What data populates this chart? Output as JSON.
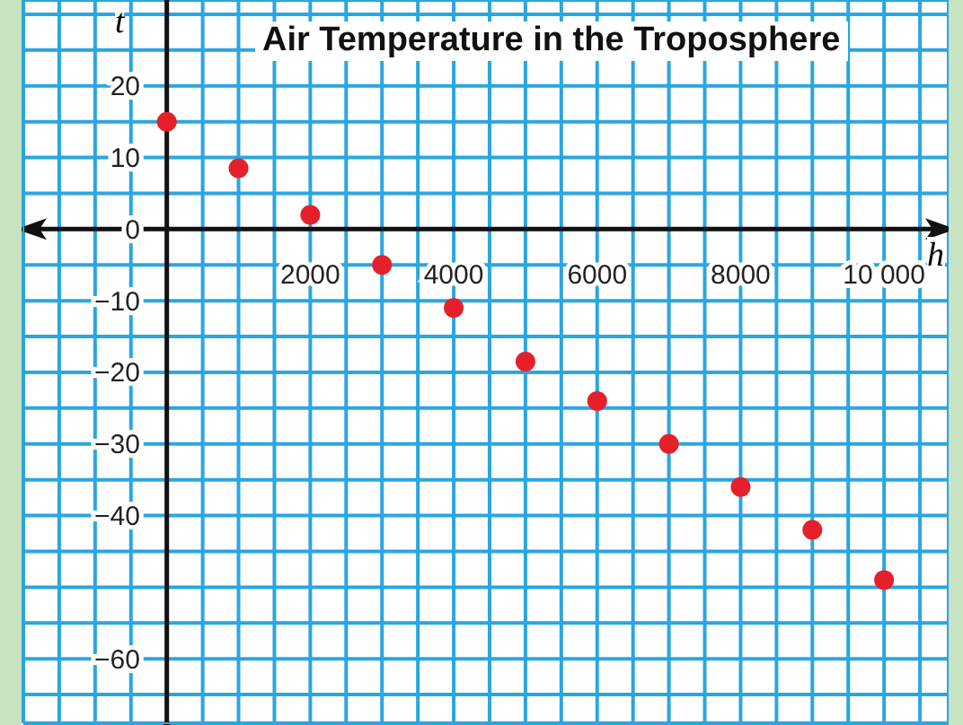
{
  "chart_data": {
    "type": "scatter",
    "title": "Air Temperature in the Troposphere",
    "xlabel": "h",
    "ylabel": "t",
    "x": [
      0,
      1000,
      2000,
      3000,
      4000,
      5000,
      6000,
      7000,
      8000,
      9000,
      10000
    ],
    "series": [
      {
        "color": "#e5202a",
        "values": [
          15,
          8.5,
          2,
          -5,
          -11,
          -18.5,
          -24,
          -30,
          -36,
          -42,
          -49
        ]
      }
    ],
    "marker": "circle",
    "grid": true,
    "xlim": [
      -2000,
      10900
    ],
    "ylim": [
      -69,
      32
    ],
    "xticks": [
      {
        "value": -2000,
        "label": null
      },
      {
        "value": -1500,
        "label": null
      },
      {
        "value": -1000,
        "label": null
      },
      {
        "value": -500,
        "label": null
      },
      {
        "value": 0,
        "label": null
      },
      {
        "value": 500,
        "label": null
      },
      {
        "value": 1000,
        "label": null
      },
      {
        "value": 1500,
        "label": null
      },
      2000,
      {
        "value": 2500,
        "label": null
      },
      {
        "value": 3000,
        "label": null
      },
      {
        "value": 3500,
        "label": null
      },
      4000,
      {
        "value": 4500,
        "label": null
      },
      {
        "value": 5000,
        "label": null
      },
      {
        "value": 5500,
        "label": null
      },
      6000,
      {
        "value": 6500,
        "label": null
      },
      {
        "value": 7000,
        "label": null
      },
      {
        "value": 7500,
        "label": null
      },
      8000,
      {
        "value": 8500,
        "label": null
      },
      {
        "value": 9000,
        "label": null
      },
      {
        "value": 9500,
        "label": null
      },
      {
        "value": 10000,
        "label": "10 000"
      },
      {
        "value": 10500,
        "label": null
      }
    ],
    "yticks": [
      {
        "value": -65,
        "label": null
      },
      {
        "value": -60,
        "label": "−60"
      },
      {
        "value": -55,
        "label": null
      },
      {
        "value": -50,
        "label": null
      },
      {
        "value": -45,
        "label": null
      },
      {
        "value": -40,
        "label": "−40"
      },
      {
        "value": -35,
        "label": null
      },
      {
        "value": -30,
        "label": "−30"
      },
      {
        "value": -25,
        "label": null
      },
      {
        "value": -20,
        "label": "−20"
      },
      {
        "value": -15,
        "label": null
      },
      {
        "value": -10,
        "label": "−10"
      },
      {
        "value": -5,
        "label": null
      },
      0,
      {
        "value": 5,
        "label": null
      },
      10,
      {
        "value": 15,
        "label": null
      },
      20,
      {
        "value": 25,
        "label": null
      },
      {
        "value": 30,
        "label": null
      }
    ]
  }
}
